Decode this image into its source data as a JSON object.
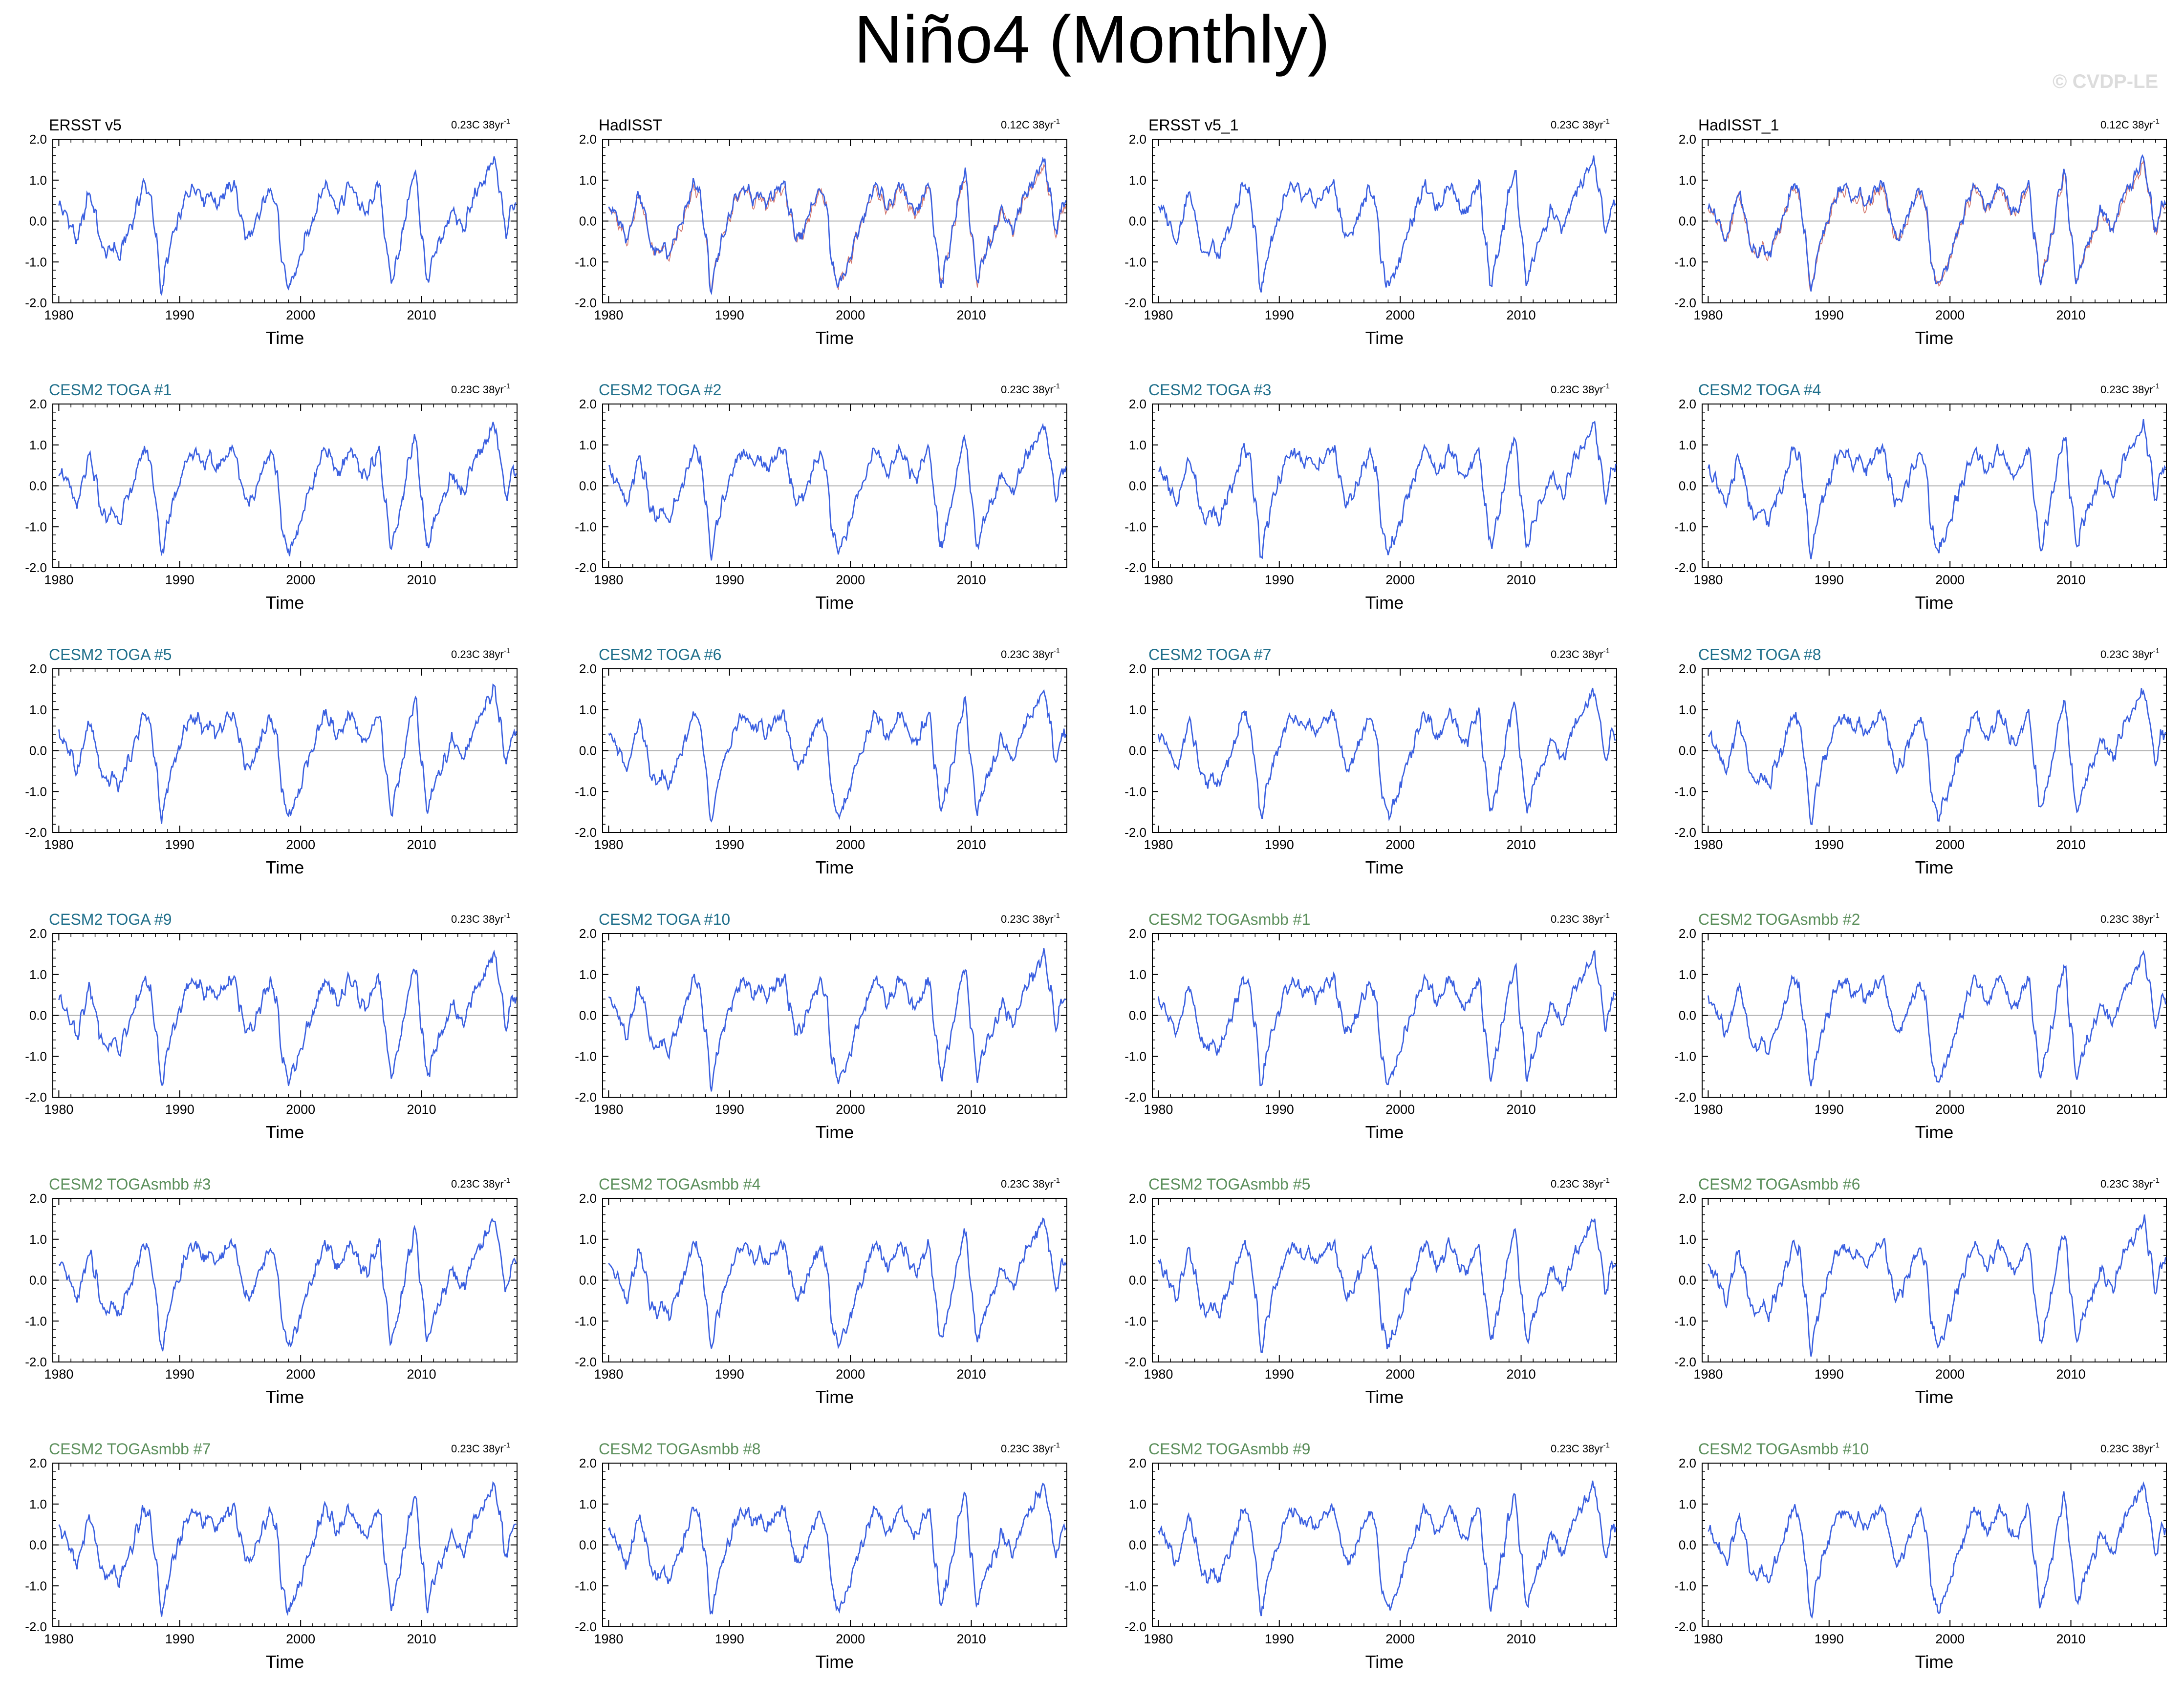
{
  "title": "Niño4 (Monthly)",
  "watermark": "© CVDP-LE",
  "colors": {
    "obs_label": "#000000",
    "toga_label": "#1f6f8b",
    "togasmbb_label": "#5b8f5b",
    "line": "#3a5fe0",
    "obs_overlay": "#c0392b",
    "zero_line": "#b0b0b0"
  },
  "chart_data": {
    "type": "line",
    "xlabel": "Time",
    "x_ticks": [
      1980,
      1990,
      2000,
      2010
    ],
    "x_range": [
      1979.5,
      2017.9
    ],
    "y_ticks": [
      "2.0",
      "1.0",
      "0.0",
      "-1.0",
      "-2.0"
    ],
    "y_range": [
      -2.0,
      2.0
    ],
    "zero_line": true,
    "panels": [
      {
        "name": "ERSST v5",
        "group": "obs",
        "trend": "0.23C 38yr",
        "trend_sup": "-1"
      },
      {
        "name": "HadISST",
        "group": "obs",
        "trend": "0.12C 38yr",
        "trend_sup": "-1",
        "overlay": true
      },
      {
        "name": "ERSST v5_1",
        "group": "obs",
        "trend": "0.23C 38yr",
        "trend_sup": "-1"
      },
      {
        "name": "HadISST_1",
        "group": "obs",
        "trend": "0.12C 38yr",
        "trend_sup": "-1",
        "overlay": true
      },
      {
        "name": "CESM2 TOGA #1",
        "group": "toga",
        "trend": "0.23C 38yr",
        "trend_sup": "-1"
      },
      {
        "name": "CESM2 TOGA #2",
        "group": "toga",
        "trend": "0.23C 38yr",
        "trend_sup": "-1"
      },
      {
        "name": "CESM2 TOGA #3",
        "group": "toga",
        "trend": "0.23C 38yr",
        "trend_sup": "-1"
      },
      {
        "name": "CESM2 TOGA #4",
        "group": "toga",
        "trend": "0.23C 38yr",
        "trend_sup": "-1"
      },
      {
        "name": "CESM2 TOGA #5",
        "group": "toga",
        "trend": "0.23C 38yr",
        "trend_sup": "-1"
      },
      {
        "name": "CESM2 TOGA #6",
        "group": "toga",
        "trend": "0.23C 38yr",
        "trend_sup": "-1"
      },
      {
        "name": "CESM2 TOGA #7",
        "group": "toga",
        "trend": "0.23C 38yr",
        "trend_sup": "-1"
      },
      {
        "name": "CESM2 TOGA #8",
        "group": "toga",
        "trend": "0.23C 38yr",
        "trend_sup": "-1"
      },
      {
        "name": "CESM2 TOGA #9",
        "group": "toga",
        "trend": "0.23C 38yr",
        "trend_sup": "-1"
      },
      {
        "name": "CESM2 TOGA #10",
        "group": "toga",
        "trend": "0.23C 38yr",
        "trend_sup": "-1"
      },
      {
        "name": "CESM2 TOGAsmbb #1",
        "group": "togasmbb",
        "trend": "0.23C 38yr",
        "trend_sup": "-1"
      },
      {
        "name": "CESM2 TOGAsmbb #2",
        "group": "togasmbb",
        "trend": "0.23C 38yr",
        "trend_sup": "-1"
      },
      {
        "name": "CESM2 TOGAsmbb #3",
        "group": "togasmbb",
        "trend": "0.23C 38yr",
        "trend_sup": "-1"
      },
      {
        "name": "CESM2 TOGAsmbb #4",
        "group": "togasmbb",
        "trend": "0.23C 38yr",
        "trend_sup": "-1"
      },
      {
        "name": "CESM2 TOGAsmbb #5",
        "group": "togasmbb",
        "trend": "0.23C 38yr",
        "trend_sup": "-1"
      },
      {
        "name": "CESM2 TOGAsmbb #6",
        "group": "togasmbb",
        "trend": "0.23C 38yr",
        "trend_sup": "-1"
      },
      {
        "name": "CESM2 TOGAsmbb #7",
        "group": "togasmbb",
        "trend": "0.23C 38yr",
        "trend_sup": "-1"
      },
      {
        "name": "CESM2 TOGAsmbb #8",
        "group": "togasmbb",
        "trend": "0.23C 38yr",
        "trend_sup": "-1"
      },
      {
        "name": "CESM2 TOGAsmbb #9",
        "group": "togasmbb",
        "trend": "0.23C 38yr",
        "trend_sup": "-1"
      },
      {
        "name": "CESM2 TOGAsmbb #10",
        "group": "togasmbb",
        "trend": "0.23C 38yr",
        "trend_sup": "-1"
      }
    ],
    "series_x": [
      1980.0,
      1980.5,
      1981.0,
      1981.5,
      1982.0,
      1982.5,
      1983.0,
      1983.5,
      1984.0,
      1984.5,
      1985.0,
      1985.5,
      1986.0,
      1986.5,
      1987.0,
      1987.5,
      1988.0,
      1988.5,
      1989.0,
      1989.5,
      1990.0,
      1990.5,
      1991.0,
      1991.5,
      1992.0,
      1992.5,
      1993.0,
      1993.5,
      1994.0,
      1994.5,
      1995.0,
      1995.5,
      1996.0,
      1996.5,
      1997.0,
      1997.5,
      1998.0,
      1998.5,
      1999.0,
      1999.5,
      2000.0,
      2000.5,
      2001.0,
      2001.5,
      2002.0,
      2002.5,
      2003.0,
      2003.5,
      2004.0,
      2004.5,
      2005.0,
      2005.5,
      2006.0,
      2006.5,
      2007.0,
      2007.5,
      2008.0,
      2008.5,
      2009.0,
      2009.5,
      2010.0,
      2010.5,
      2011.0,
      2011.5,
      2012.0,
      2012.5,
      2013.0,
      2013.5,
      2014.0,
      2014.5,
      2015.0,
      2015.5,
      2016.0,
      2016.5,
      2017.0,
      2017.5
    ],
    "series_y": [
      0.4,
      0.2,
      -0.1,
      -0.5,
      0.1,
      0.7,
      0.2,
      -0.6,
      -0.8,
      -0.6,
      -0.9,
      -0.4,
      -0.1,
      0.4,
      0.9,
      0.7,
      -0.3,
      -1.7,
      -0.9,
      -0.3,
      0.1,
      0.6,
      0.8,
      0.8,
      0.5,
      0.7,
      0.4,
      0.6,
      0.8,
      0.9,
      0.2,
      -0.4,
      -0.3,
      0.1,
      0.5,
      0.8,
      0.4,
      -1.1,
      -1.6,
      -1.3,
      -0.9,
      -0.3,
      0.0,
      0.5,
      0.9,
      0.7,
      0.3,
      0.5,
      0.9,
      0.7,
      0.3,
      0.2,
      0.6,
      0.9,
      -0.4,
      -1.5,
      -0.9,
      -0.2,
      0.7,
      1.2,
      -0.3,
      -1.5,
      -0.9,
      -0.5,
      -0.2,
      0.3,
      0.0,
      -0.2,
      0.3,
      0.7,
      0.9,
      1.2,
      1.5,
      0.7,
      -0.3,
      0.4
    ]
  }
}
